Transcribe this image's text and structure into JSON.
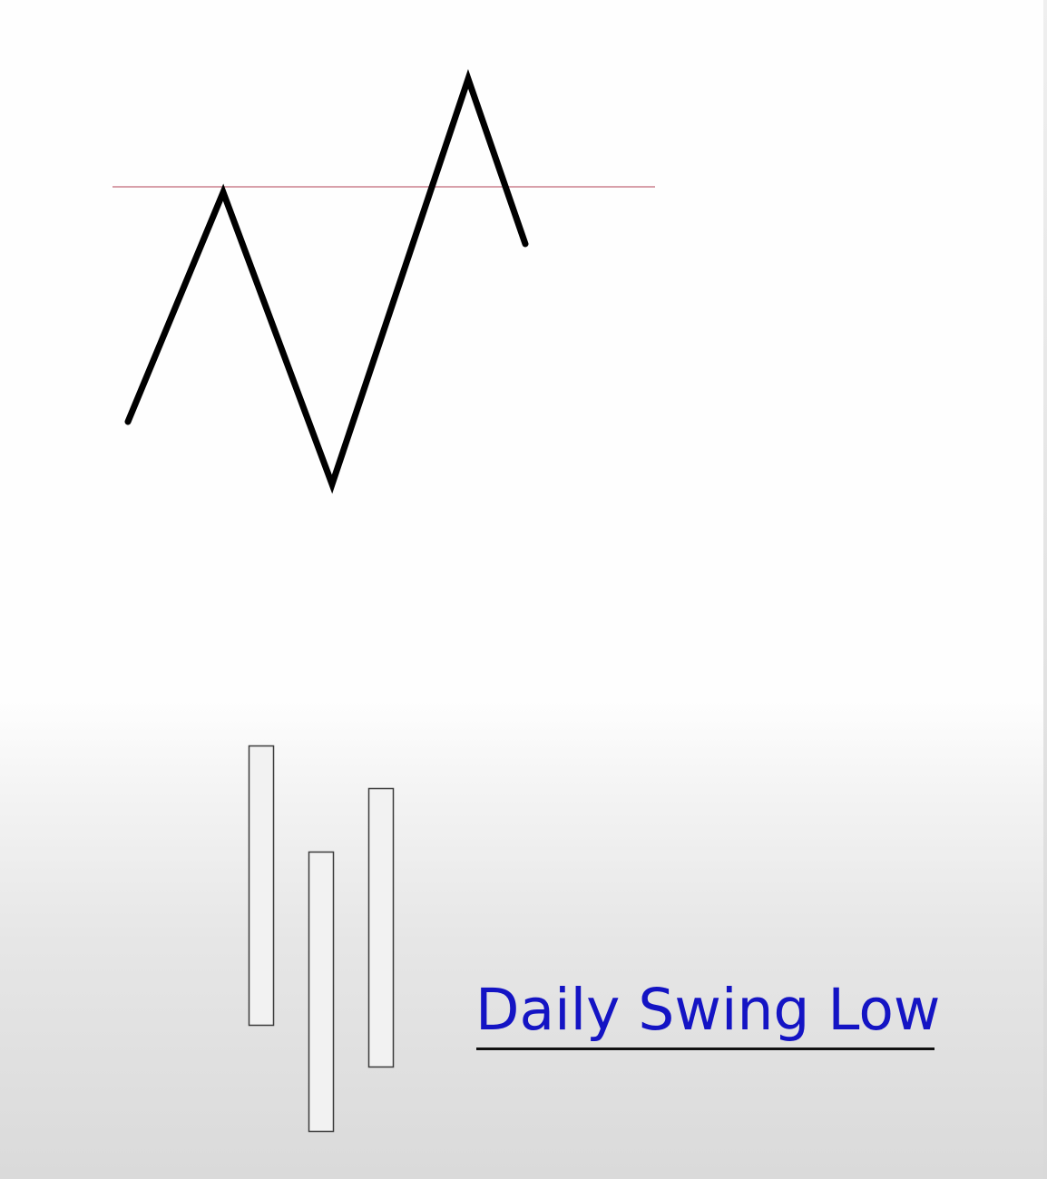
{
  "caption": {
    "text": "Daily Swing Low",
    "color": "#1414c4"
  },
  "colors": {
    "swing_line": "#000000",
    "resistance_line": "#d8a0aa",
    "bar_outline": "#3a3a3a",
    "bar_fill": "#f2f2f2"
  }
}
